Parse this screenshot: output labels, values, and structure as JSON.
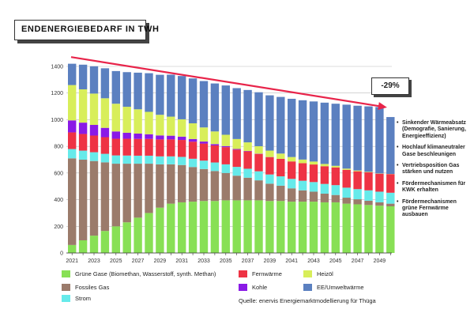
{
  "title": "ENDENERGIEBEDARF IN TWH",
  "callout": "-29%",
  "bullets": [
    "Sinkender Wärmeabsatz (Demografie, Sanierung, Energieeffizienz)",
    "Hochlauf klimaneutraler Gase beschleunigen",
    "Vertriebsposition Gas stärken und nutzen",
    "Fördermechanismen für KWK erhalten",
    "Fördermechanismen grüne Fernwärme ausbauen"
  ],
  "source": "Quelle: enervis Energiemarktmodellierung für Thüga",
  "colors": {
    "gruene_gase": "#88e055",
    "fossiles_gas": "#9b7b6b",
    "strom": "#66eaea",
    "fernwaerme": "#ee3344",
    "kohle": "#8a1ae6",
    "heizoel": "#d8ee5a",
    "ee": "#5b80c0",
    "arrow": "#e8244a",
    "grid": "#bbbbbb"
  },
  "legend": [
    {
      "key": "gruene_gase",
      "label": "Grüne Gase (Biomethan, Wasserstoff, synth. Methan)"
    },
    {
      "key": "fossiles_gas",
      "label": "Fossiles Gas"
    },
    {
      "key": "strom",
      "label": "Strom"
    },
    {
      "key": "fernwaerme",
      "label": "Fernwärme"
    },
    {
      "key": "kohle",
      "label": "Kohle"
    },
    {
      "key": "heizoel",
      "label": "Heizöl"
    },
    {
      "key": "ee",
      "label": "EE/Umweltwärme"
    }
  ],
  "chart_data": {
    "type": "bar",
    "stacked": true,
    "title": "ENDENERGIEBEDARF IN TWH",
    "xlabel": "",
    "ylabel": "",
    "ylim": [
      0,
      1400
    ],
    "yticks": [
      0,
      200,
      400,
      600,
      800,
      1000,
      1200,
      1400
    ],
    "grid": true,
    "legend_position": "bottom",
    "x_tick_labels": [
      "2021",
      "2023",
      "2025",
      "2027",
      "2029",
      "2031",
      "2033",
      "2035",
      "2037",
      "2039",
      "2041",
      "2043",
      "2045",
      "2047",
      "2049"
    ],
    "categories": [
      2021,
      2022,
      2023,
      2024,
      2025,
      2026,
      2027,
      2028,
      2029,
      2030,
      2031,
      2032,
      2033,
      2034,
      2035,
      2036,
      2037,
      2038,
      2039,
      2040,
      2041,
      2042,
      2043,
      2044,
      2045,
      2046,
      2047,
      2048,
      2049,
      2050
    ],
    "series": [
      {
        "key": "gruene_gase",
        "name": "Grüne Gase (Biomethan, Wasserstoff, synth. Methan)",
        "values": [
          60,
          95,
          130,
          165,
          200,
          230,
          265,
          300,
          340,
          370,
          380,
          385,
          390,
          390,
          395,
          395,
          395,
          395,
          390,
          390,
          385,
          385,
          385,
          380,
          380,
          370,
          365,
          360,
          355,
          350
        ]
      },
      {
        "key": "fossiles_gas",
        "name": "Fossiles Gas",
        "values": [
          650,
          605,
          560,
          515,
          470,
          440,
          405,
          370,
          325,
          295,
          280,
          260,
          240,
          225,
          205,
          185,
          170,
          150,
          130,
          115,
          100,
          85,
          75,
          65,
          55,
          45,
          38,
          32,
          25,
          20
        ]
      },
      {
        "key": "strom",
        "name": "Strom",
        "values": [
          70,
          68,
          66,
          64,
          62,
          61,
          60,
          60,
          60,
          60,
          61,
          62,
          63,
          64,
          65,
          66,
          67,
          68,
          69,
          70,
          71,
          72,
          72,
          73,
          74,
          75,
          76,
          78,
          80,
          82
        ]
      },
      {
        "key": "fernwaerme",
        "name": "Fernwärme",
        "values": [
          125,
          125,
          125,
          125,
          125,
          126,
          126,
          126,
          127,
          127,
          127,
          128,
          128,
          128,
          129,
          129,
          130,
          130,
          130,
          131,
          131,
          132,
          132,
          133,
          133,
          134,
          134,
          135,
          135,
          140
        ]
      },
      {
        "key": "kohle",
        "name": "Kohle",
        "values": [
          90,
          85,
          80,
          70,
          55,
          45,
          40,
          35,
          30,
          28,
          25,
          20,
          15,
          10,
          8,
          5,
          3,
          2,
          1,
          0,
          0,
          0,
          0,
          0,
          0,
          0,
          0,
          0,
          0,
          0
        ]
      },
      {
        "key": "heizoel",
        "name": "Heizöl",
        "values": [
          265,
          250,
          235,
          222,
          208,
          195,
          182,
          168,
          155,
          143,
          130,
          118,
          106,
          95,
          85,
          75,
          65,
          56,
          48,
          40,
          33,
          27,
          22,
          17,
          12,
          9,
          6,
          4,
          2,
          1
        ]
      },
      {
        "key": "ee",
        "name": "EE/Umweltwärme",
        "values": [
          160,
          185,
          205,
          225,
          245,
          260,
          275,
          290,
          300,
          315,
          325,
          337,
          348,
          360,
          370,
          382,
          393,
          405,
          415,
          425,
          437,
          445,
          451,
          460,
          466,
          480,
          486,
          491,
          498,
          427
        ]
      }
    ]
  }
}
